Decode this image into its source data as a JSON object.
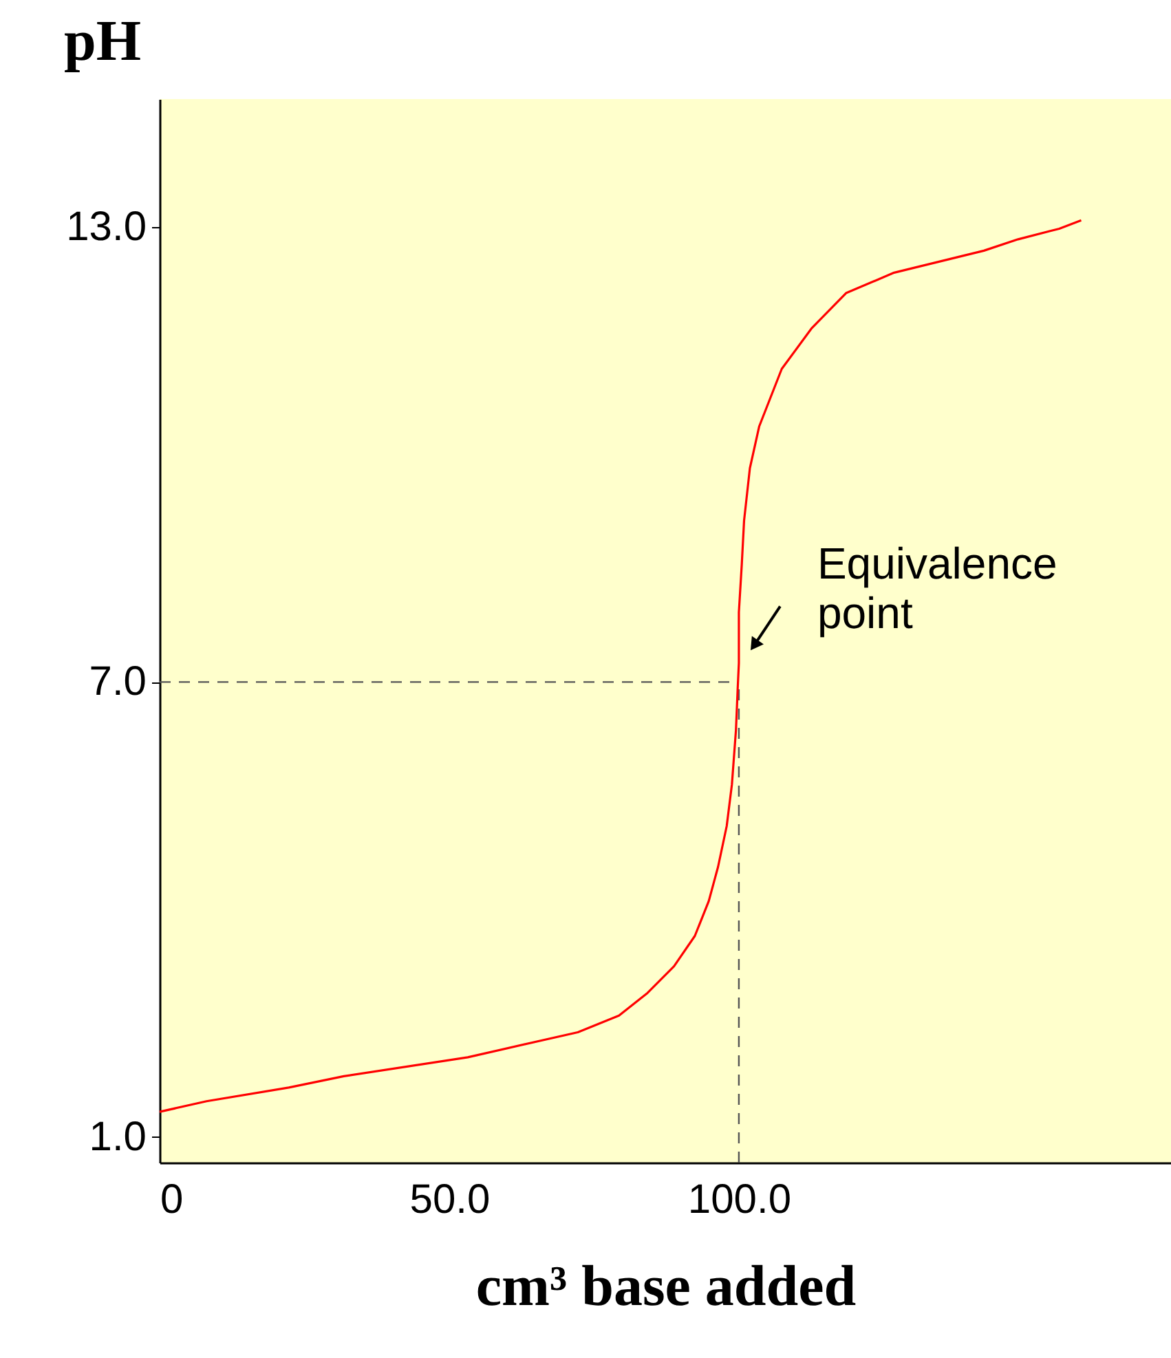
{
  "chart_data": {
    "type": "line",
    "ylabel": "pH",
    "xlabel": "cm³ base added",
    "x": [
      0,
      8.1,
      22.3,
      31.8,
      53.2,
      72.2,
      79.3,
      84.1,
      88.8,
      92.4,
      94.8,
      96.4,
      97.9,
      98.8,
      99.5,
      99.8,
      100,
      100,
      100.5,
      100.9,
      101.9,
      103.5,
      107.4,
      112.6,
      118.5,
      126.8,
      142.3,
      148.2,
      155.3,
      159.1
    ],
    "series": [
      {
        "color": "#ff0000",
        "values": [
          1.33,
          1.47,
          1.65,
          1.8,
          2.05,
          2.38,
          2.6,
          2.89,
          3.25,
          3.65,
          4.11,
          4.56,
          5.1,
          5.65,
          6.37,
          6.92,
          7.25,
          7.92,
          8.55,
          9.13,
          9.82,
          10.37,
          11.13,
          11.67,
          12.13,
          12.4,
          12.69,
          12.84,
          12.98,
          13.09
        ]
      }
    ],
    "xlim": [
      0,
      174.6
    ],
    "ylim": [
      0.66,
      14.69
    ],
    "xticks": [
      {
        "value": 0,
        "label": "0"
      },
      {
        "value": 50,
        "label": "50.0"
      },
      {
        "value": 100,
        "label": "100.0"
      }
    ],
    "yticks": [
      {
        "value": 1,
        "label": "1.0"
      },
      {
        "value": 7,
        "label": "7.0"
      },
      {
        "value": 13,
        "label": "13.0"
      }
    ],
    "ref_lines": [
      {
        "axis": "y",
        "value": 7,
        "color": "#555555",
        "line_style": "dashed"
      },
      {
        "axis": "x",
        "value": 100,
        "color": "#555555",
        "line_style": "dashed"
      }
    ],
    "annotations": [
      {
        "text": "Equivalence\npoint",
        "x": 100,
        "y": 7
      }
    ],
    "grid": false,
    "marker": "none",
    "line_style": "solid"
  }
}
